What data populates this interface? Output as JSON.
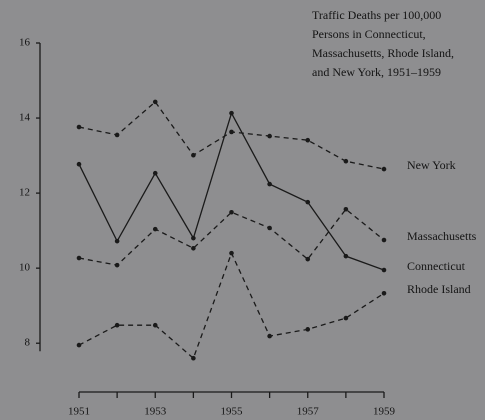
{
  "chart_data": {
    "type": "line",
    "title": [
      "Traffic Deaths per 100,000",
      "Persons in Connecticut,",
      "Massachusetts, Rhode Island,",
      "and New York, 1951–1959"
    ],
    "categories": [
      1951,
      null,
      1953,
      null,
      1955,
      null,
      1957,
      null,
      1959
    ],
    "series": [
      {
        "name": "New York",
        "color": "#1a1a1a",
        "dashed": true,
        "values": [
          13.76,
          13.55,
          14.43,
          13.01,
          13.63,
          13.52,
          13.41,
          12.85,
          12.64
        ]
      },
      {
        "name": "Massachusetts",
        "color": "#1a1a1a",
        "dashed": true,
        "values": [
          10.27,
          10.08,
          11.04,
          10.53,
          11.49,
          11.07,
          10.24,
          11.57,
          10.75
        ]
      },
      {
        "name": "Connecticut",
        "color": "#1a1a1a",
        "dashed": false,
        "values": [
          12.77,
          10.72,
          12.53,
          10.8,
          14.13,
          12.24,
          11.76,
          10.32,
          9.95
        ]
      },
      {
        "name": "Rhode Island",
        "color": "#1a1a1a",
        "dashed": true,
        "values": [
          7.95,
          8.48,
          8.48,
          7.6,
          10.4,
          8.19,
          8.37,
          8.67,
          9.33
        ]
      }
    ],
    "ylim": [
      6.7,
      16
    ],
    "yticks": [
      8,
      10,
      12,
      14,
      16
    ],
    "grid": false
  }
}
